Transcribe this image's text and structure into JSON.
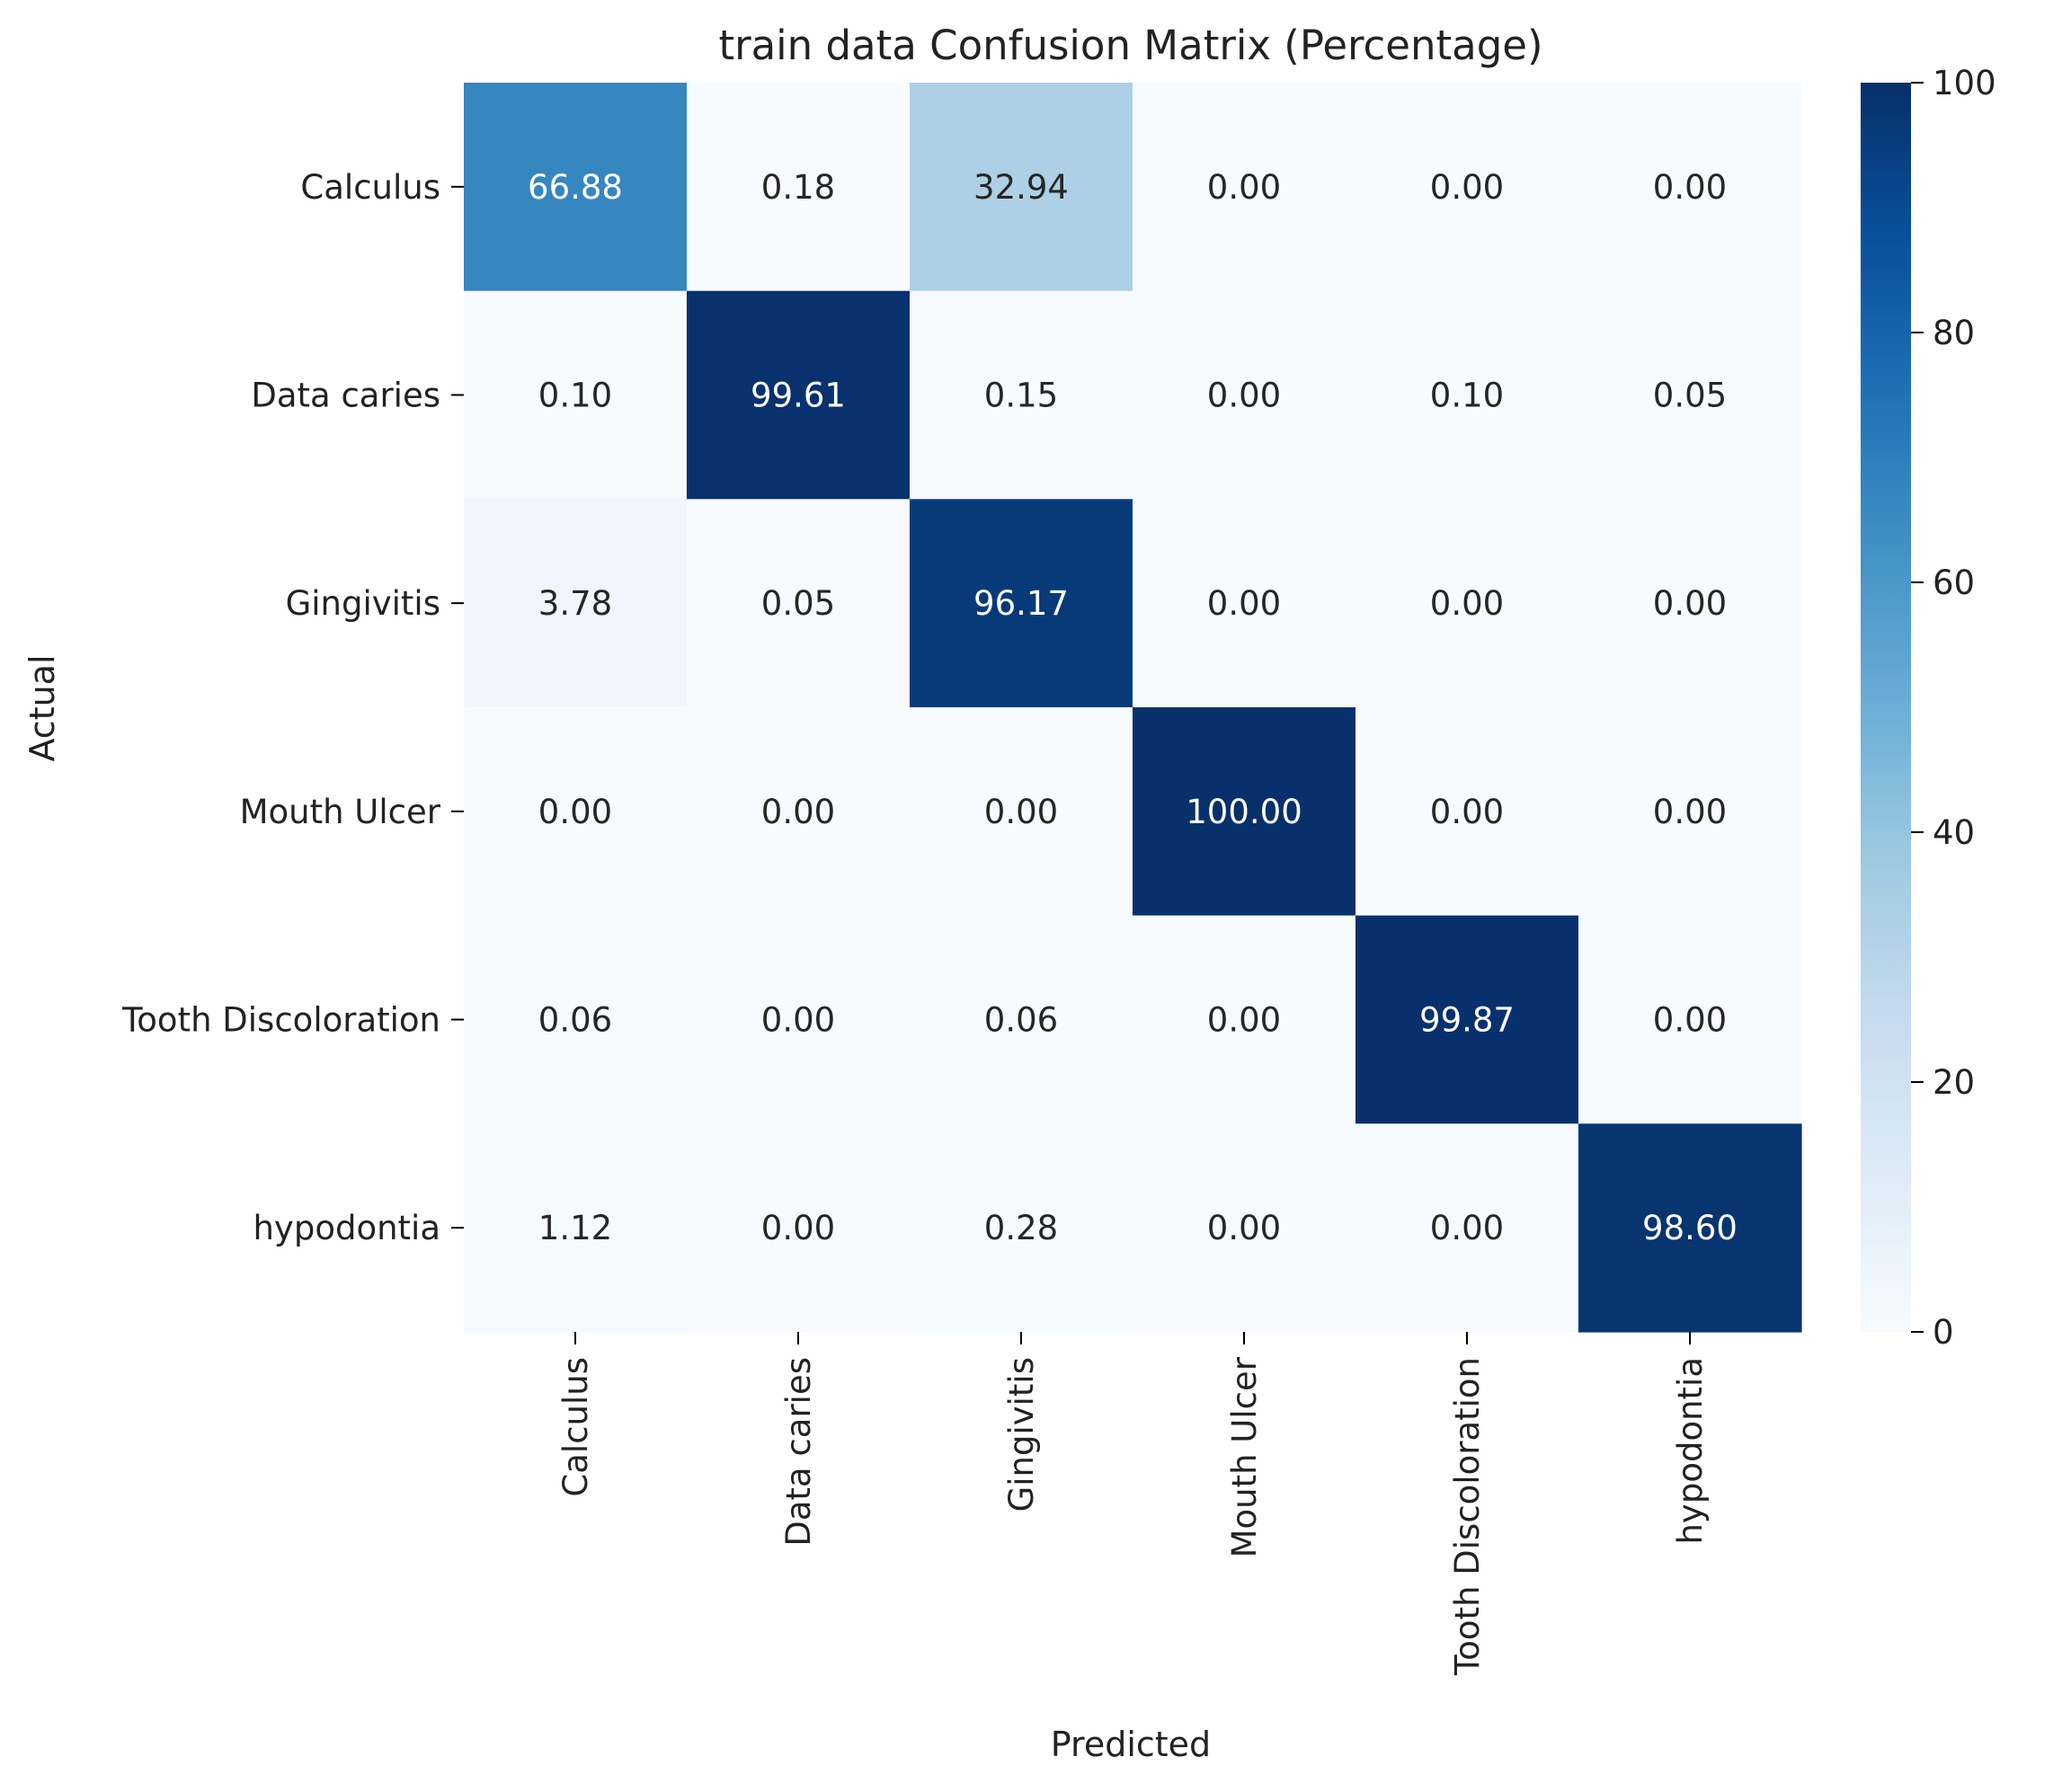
{
  "chart_data": {
    "type": "heatmap",
    "title": "train data Confusion Matrix (Percentage)",
    "xlabel": "Predicted",
    "ylabel": "Actual",
    "x_categories": [
      "Calculus",
      "Data caries",
      "Gingivitis",
      "Mouth Ulcer",
      "Tooth Discoloration",
      "hypodontia"
    ],
    "y_categories": [
      "Calculus",
      "Data caries",
      "Gingivitis",
      "Mouth Ulcer",
      "Tooth Discoloration",
      "hypodontia"
    ],
    "values": [
      [
        66.88,
        0.18,
        32.94,
        0.0,
        0.0,
        0.0
      ],
      [
        0.1,
        99.61,
        0.15,
        0.0,
        0.1,
        0.05
      ],
      [
        3.78,
        0.05,
        96.17,
        0.0,
        0.0,
        0.0
      ],
      [
        0.0,
        0.0,
        0.0,
        100.0,
        0.0,
        0.0
      ],
      [
        0.06,
        0.0,
        0.06,
        0.0,
        99.87,
        0.0
      ],
      [
        1.12,
        0.0,
        0.28,
        0.0,
        0.0,
        98.6
      ]
    ],
    "value_format_decimals": 2,
    "colormap": "Blues",
    "color_range": [
      0,
      100
    ],
    "colorbar_ticks": [
      0,
      20,
      40,
      60,
      80,
      100
    ],
    "grid": false,
    "colorbar_position": "right"
  }
}
